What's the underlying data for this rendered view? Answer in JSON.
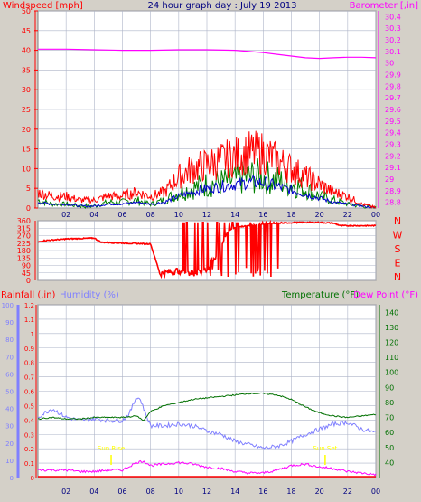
{
  "header": {
    "wind_label": "Windspeed [mph]",
    "title": "24 hour graph day : July 19 2013",
    "baro_label": "Barometer [,in]"
  },
  "colors": {
    "background": "#d4d0c8",
    "plot_bg": "#ffffff",
    "grid": "#aeb4c8",
    "wind": "#ff0000",
    "gust": "#ff0000",
    "avg_wind": "#0000cc",
    "wind_green": "#008000",
    "barometer": "#ff00ff",
    "direction": "#ff0000",
    "rain": "#ff0000",
    "humidity": "#8080ff",
    "temperature": "#007000",
    "dewpoint": "#ff00ff",
    "solar": "#ffff00",
    "time_axis": "#000080"
  },
  "labels": {
    "rain_label": "Rainfall (.in)",
    "humidity_label": "Humidity (%)",
    "temperature_label": "Temperature (°F)",
    "dewpoint_label": "Dew Point (°F)",
    "sunrise_label": "Sun Rise",
    "sunset_label": "Sun Set"
  },
  "chart_data": [
    {
      "type": "line",
      "id": "wind_baro",
      "title": "24 hour graph day : July 19 2013",
      "ylabel_left": "Windspeed [mph]",
      "ylabel_right": "Barometer [,in]",
      "x_ticks": [
        "02",
        "04",
        "06",
        "08",
        "10",
        "12",
        "14",
        "16",
        "18",
        "20",
        "22",
        "00"
      ],
      "y_left_ticks": [
        0,
        5,
        10,
        15,
        20,
        25,
        30,
        35,
        40,
        45,
        50
      ],
      "y_left_range": [
        0,
        50
      ],
      "y_right_ticks": [
        "28.8",
        "28.9",
        "29",
        "29.1",
        "29.2",
        "29.3",
        "29.4",
        "29.5",
        "29.6",
        "29.7",
        "29.8",
        "29.9",
        "30",
        "30.1",
        "30.2",
        "30.3",
        "30.4"
      ],
      "y_right_range": [
        28.75,
        30.45
      ],
      "x_range": [
        0,
        24
      ],
      "series": [
        {
          "kind": "barometer",
          "x": [
            0,
            2,
            4,
            6,
            8,
            10,
            12,
            14,
            15,
            16,
            17,
            18,
            19,
            20,
            21,
            22,
            23,
            24
          ],
          "values": [
            30.12,
            30.12,
            30.115,
            30.11,
            30.11,
            30.115,
            30.115,
            30.11,
            30.1,
            30.09,
            30.075,
            30.06,
            30.045,
            30.04,
            30.045,
            30.05,
            30.05,
            30.045
          ]
        },
        {
          "kind": "gust",
          "x": [
            0,
            1,
            2,
            3,
            4,
            5,
            6,
            7,
            8,
            9,
            10,
            11,
            12,
            13,
            14,
            15,
            16,
            17,
            18,
            19,
            20,
            21,
            22,
            23,
            24
          ],
          "values": [
            4,
            3,
            3,
            2,
            2,
            3,
            3,
            4,
            3,
            4,
            8,
            10,
            11,
            12,
            13,
            14,
            14,
            12,
            10,
            8,
            6,
            4,
            3,
            1,
            0
          ]
        },
        {
          "kind": "avg",
          "x": [
            0,
            1,
            2,
            3,
            4,
            5,
            6,
            7,
            8,
            9,
            10,
            11,
            12,
            13,
            14,
            15,
            16,
            17,
            18,
            19,
            20,
            21,
            22,
            23,
            24
          ],
          "values": [
            1.5,
            1,
            1,
            0.5,
            0.5,
            1,
            1,
            1.5,
            1,
            1.5,
            3,
            4,
            5,
            5.5,
            6,
            6.5,
            6.5,
            5.5,
            4.5,
            3.5,
            2.5,
            1.5,
            1,
            0.5,
            0
          ]
        },
        {
          "kind": "speed",
          "x": [
            0,
            1,
            2,
            3,
            4,
            5,
            6,
            7,
            8,
            9,
            10,
            11,
            12,
            13,
            14,
            15,
            16,
            17,
            18,
            19,
            20,
            21,
            22,
            23,
            24
          ],
          "values": [
            2,
            1,
            1,
            0.5,
            0.5,
            1.5,
            1.5,
            2,
            1,
            2,
            4,
            5,
            6,
            6.5,
            7,
            8,
            8,
            7,
            6,
            5,
            3,
            2,
            1,
            0.5,
            0
          ]
        }
      ]
    },
    {
      "type": "line",
      "id": "direction",
      "y_left_ticks": [
        0,
        45,
        90,
        135,
        180,
        225,
        270,
        315,
        360
      ],
      "y_left_range": [
        0,
        360
      ],
      "right_labels": [
        "N",
        "W",
        "S",
        "E",
        "N"
      ],
      "series": [
        {
          "kind": "direction",
          "x": [
            0,
            0.4,
            2,
            4,
            4.5,
            6,
            8,
            8.6,
            8.65,
            10,
            11,
            12,
            13,
            13.5,
            14,
            15,
            16,
            17,
            18,
            19,
            20,
            21,
            21.5,
            22,
            23,
            24
          ],
          "values": [
            230,
            240,
            250,
            255,
            230,
            225,
            220,
            60,
            40,
            60,
            40,
            60,
            200,
            300,
            320,
            330,
            340,
            345,
            348,
            350,
            350,
            345,
            330,
            330,
            330,
            330
          ]
        }
      ]
    },
    {
      "type": "line",
      "id": "rain_hum_temp",
      "ylabel_left": "Rainfall (.in)",
      "ylabel_left2": "Humidity (%)",
      "ylabel_right": "Temperature (°F)",
      "ylabel_right2": "Dew Point (°F)",
      "y_rain_ticks": [
        "0",
        "0.1",
        "0.2",
        "0.3",
        "0.4",
        "0.5",
        "0.6",
        "0.7",
        "0.8",
        "0.9",
        "1",
        "1.1",
        "1.2"
      ],
      "y_rain_range": [
        0,
        1.2
      ],
      "y_hum_ticks": [
        0,
        10,
        20,
        30,
        40,
        50,
        60,
        70,
        80,
        90,
        100
      ],
      "y_hum_range": [
        0,
        100
      ],
      "y_temp_ticks": [
        40,
        50,
        60,
        70,
        80,
        90,
        100,
        110,
        120,
        130,
        140
      ],
      "y_temp_range": [
        30,
        145
      ],
      "annotations": [
        "Sun Rise",
        "Sun Set"
      ],
      "series": [
        {
          "kind": "humidity",
          "x": [
            0,
            1,
            2,
            3,
            4,
            5,
            6,
            6.5,
            7,
            7.3,
            7.6,
            8,
            9,
            10,
            11,
            12,
            13,
            14,
            15,
            16,
            17,
            18,
            19,
            20,
            21,
            22,
            23,
            24
          ],
          "values": [
            35,
            40,
            35,
            33,
            34,
            33,
            33,
            37,
            47,
            45,
            38,
            30,
            30,
            31,
            30,
            27,
            25,
            21,
            19,
            17,
            18,
            21,
            25,
            28,
            31,
            32,
            28,
            26
          ]
        },
        {
          "kind": "temperature",
          "x": [
            0,
            1,
            2,
            3,
            4,
            5,
            6,
            7,
            7.5,
            8,
            9,
            10,
            11,
            12,
            13,
            14,
            15,
            16,
            17,
            18,
            19,
            20,
            21,
            22,
            23,
            24
          ],
          "values": [
            69,
            70,
            69,
            69,
            70,
            70,
            70,
            71,
            68,
            74,
            78,
            80,
            82,
            83,
            84,
            85,
            86,
            86,
            85,
            82,
            77,
            73,
            71,
            70,
            71,
            72
          ]
        },
        {
          "kind": "dewpoint",
          "x": [
            0,
            1,
            2,
            3,
            4,
            5,
            6,
            7,
            7.5,
            8,
            9,
            10,
            11,
            12,
            13,
            14,
            15,
            16,
            17,
            18,
            19,
            20,
            21,
            22,
            23,
            24
          ],
          "values": [
            35,
            35,
            35,
            34,
            34,
            35,
            35,
            40,
            41,
            38,
            39,
            40,
            39,
            37,
            36,
            34,
            33,
            33,
            35,
            38,
            39,
            37,
            36,
            34,
            33,
            32
          ]
        }
      ]
    }
  ]
}
